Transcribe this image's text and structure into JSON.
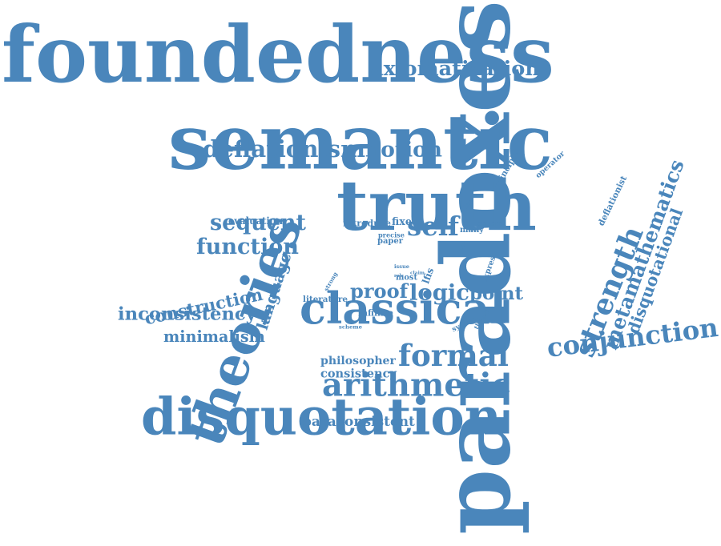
{
  "colors": {
    "word": "#4a86bb",
    "background": "#ffffff"
  },
  "words": [
    {
      "text": "foundedness"
    },
    {
      "text": "paradoxes"
    },
    {
      "text": "semantic"
    },
    {
      "text": "truth"
    },
    {
      "text": "theories"
    },
    {
      "text": "disquotation"
    },
    {
      "text": "classical"
    },
    {
      "text": "arithmetic"
    },
    {
      "text": "formal"
    },
    {
      "text": "axiomatization"
    },
    {
      "text": "conjunction"
    },
    {
      "text": "strength"
    },
    {
      "text": "metamathematics"
    },
    {
      "text": "deflationism"
    },
    {
      "text": "notion"
    },
    {
      "text": "sequent"
    },
    {
      "text": "function"
    },
    {
      "text": "self"
    },
    {
      "text": "construction"
    },
    {
      "text": "inconsistency"
    },
    {
      "text": "minimalism"
    },
    {
      "text": "logic"
    },
    {
      "text": "point"
    },
    {
      "text": "proof"
    },
    {
      "text": "disquotational"
    },
    {
      "text": "paraconsistent"
    },
    {
      "text": "philosopher"
    },
    {
      "text": "consistency"
    },
    {
      "text": "language"
    },
    {
      "text": "literature"
    },
    {
      "text": "infinite"
    },
    {
      "text": "fixed"
    },
    {
      "text": "introduce"
    },
    {
      "text": "evaluation"
    },
    {
      "text": "deflationist"
    },
    {
      "text": "principle"
    },
    {
      "text": "operator"
    },
    {
      "text": "precise"
    },
    {
      "text": "paper"
    },
    {
      "text": "several"
    },
    {
      "text": "many"
    },
    {
      "text": "order"
    },
    {
      "text": "better"
    },
    {
      "text": "strong"
    },
    {
      "text": "issue"
    },
    {
      "text": "role"
    },
    {
      "text": "claim"
    },
    {
      "text": "most"
    },
    {
      "text": "lfis"
    },
    {
      "text": "express"
    },
    {
      "text": "system"
    },
    {
      "text": "theory"
    },
    {
      "text": "scheme"
    }
  ]
}
